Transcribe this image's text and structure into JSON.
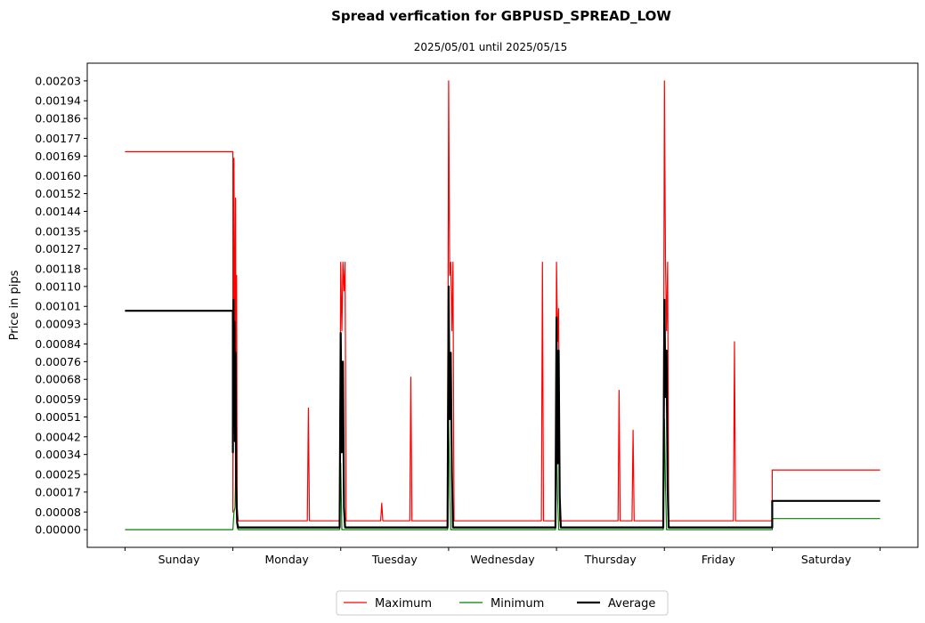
{
  "chart_data": {
    "type": "line",
    "title": "Spread verfication for GBPUSD_SPREAD_LOW",
    "subtitle": "2025/05/01 until 2025/05/15",
    "xlabel": "",
    "ylabel": "Price in pips",
    "ylim": [
      -8e-05,
      0.00211
    ],
    "xlim": [
      -0.35,
      7.35
    ],
    "grid": false,
    "legend_position": "bottom-center",
    "y_ticks": [
      "0.00000",
      "0.00008",
      "0.00017",
      "0.00025",
      "0.00034",
      "0.00042",
      "0.00051",
      "0.00059",
      "0.00068",
      "0.00076",
      "0.00084",
      "0.00093",
      "0.00101",
      "0.00110",
      "0.00118",
      "0.00127",
      "0.00135",
      "0.00144",
      "0.00152",
      "0.00160",
      "0.00169",
      "0.00177",
      "0.00186",
      "0.00194",
      "0.00203"
    ],
    "x_tick_positions": [
      0,
      1,
      2,
      3,
      4,
      5,
      6,
      7
    ],
    "categories": [
      "Sunday",
      "Monday",
      "Tuesday",
      "Wednesday",
      "Thursday",
      "Friday",
      "Saturday"
    ],
    "category_positions": [
      0.5,
      1.5,
      2.5,
      3.5,
      4.5,
      5.5,
      6.5
    ],
    "series": [
      {
        "name": "Maximum",
        "color": "#ff0000",
        "width": 1.2,
        "points": [
          [
            0.0,
            0.00171
          ],
          [
            1.0,
            0.00171
          ],
          [
            1.0,
            8e-05
          ],
          [
            1.01,
            0.00168
          ],
          [
            1.02,
            0.0006
          ],
          [
            1.025,
            0.0015
          ],
          [
            1.03,
            0.0003
          ],
          [
            1.035,
            0.00115
          ],
          [
            1.04,
            0.0001
          ],
          [
            1.05,
            4e-05
          ],
          [
            1.69,
            4e-05
          ],
          [
            1.7,
            0.00055
          ],
          [
            1.71,
            4e-05
          ],
          [
            1.99,
            4e-05
          ],
          [
            2.0,
            0.00121
          ],
          [
            2.01,
            0.0009
          ],
          [
            2.02,
            0.00121
          ],
          [
            2.03,
            0.00108
          ],
          [
            2.04,
            0.00121
          ],
          [
            2.05,
            4e-05
          ],
          [
            2.37,
            4e-05
          ],
          [
            2.38,
            0.00012
          ],
          [
            2.39,
            4e-05
          ],
          [
            2.64,
            4e-05
          ],
          [
            2.65,
            0.00069
          ],
          [
            2.66,
            4e-05
          ],
          [
            2.99,
            4e-05
          ],
          [
            3.0,
            0.00203
          ],
          [
            3.01,
            0.00115
          ],
          [
            3.02,
            0.00121
          ],
          [
            3.03,
            0.0009
          ],
          [
            3.04,
            0.00121
          ],
          [
            3.05,
            4e-05
          ],
          [
            3.86,
            4e-05
          ],
          [
            3.87,
            0.00121
          ],
          [
            3.88,
            4e-05
          ],
          [
            3.99,
            4e-05
          ],
          [
            4.0,
            0.00121
          ],
          [
            4.01,
            0.00085
          ],
          [
            4.02,
            0.001
          ],
          [
            4.03,
            4e-05
          ],
          [
            4.57,
            4e-05
          ],
          [
            4.58,
            0.00063
          ],
          [
            4.59,
            4e-05
          ],
          [
            4.7,
            4e-05
          ],
          [
            4.71,
            0.00045
          ],
          [
            4.72,
            4e-05
          ],
          [
            4.99,
            4e-05
          ],
          [
            5.0,
            0.00203
          ],
          [
            5.01,
            0.00121
          ],
          [
            5.02,
            0.0009
          ],
          [
            5.03,
            0.00121
          ],
          [
            5.04,
            4e-05
          ],
          [
            5.64,
            4e-05
          ],
          [
            5.65,
            0.00085
          ],
          [
            5.66,
            4e-05
          ],
          [
            6.0,
            4e-05
          ],
          [
            6.0,
            0.00027
          ],
          [
            7.0,
            0.00027
          ]
        ]
      },
      {
        "name": "Minimum",
        "color": "#008000",
        "width": 1.2,
        "points": [
          [
            0.0,
            0.0
          ],
          [
            1.0,
            0.0
          ],
          [
            1.01,
            8e-05
          ],
          [
            1.02,
            0.0001
          ],
          [
            1.03,
            0.00035
          ],
          [
            1.04,
            1e-05
          ],
          [
            1.05,
            0.0
          ],
          [
            1.99,
            0.0
          ],
          [
            2.0,
            0.0003
          ],
          [
            2.01,
            0.0
          ],
          [
            2.99,
            0.0
          ],
          [
            3.0,
            0.0005
          ],
          [
            3.01,
            0.0002
          ],
          [
            3.02,
            0.0
          ],
          [
            3.99,
            0.0
          ],
          [
            4.0,
            0.0004
          ],
          [
            4.01,
            0.00015
          ],
          [
            4.02,
            0.0
          ],
          [
            4.99,
            0.0
          ],
          [
            5.0,
            0.0005
          ],
          [
            5.01,
            0.0002
          ],
          [
            5.02,
            0.0
          ],
          [
            6.0,
            0.0
          ],
          [
            6.0,
            5e-05
          ],
          [
            7.0,
            5e-05
          ]
        ]
      },
      {
        "name": "Average",
        "color": "#000000",
        "width": 2.2,
        "points": [
          [
            0.0,
            0.00099
          ],
          [
            1.0,
            0.00099
          ],
          [
            1.0,
            0.00035
          ],
          [
            1.005,
            0.00104
          ],
          [
            1.01,
            0.0005
          ],
          [
            1.015,
            0.00094
          ],
          [
            1.02,
            0.0004
          ],
          [
            1.025,
            0.0008
          ],
          [
            1.03,
            0.0002
          ],
          [
            1.04,
            3e-05
          ],
          [
            1.05,
            1e-05
          ],
          [
            1.99,
            1e-05
          ],
          [
            2.0,
            0.00089
          ],
          [
            2.01,
            0.00035
          ],
          [
            2.02,
            0.00076
          ],
          [
            2.03,
            0.0001
          ],
          [
            2.04,
            1e-05
          ],
          [
            2.99,
            1e-05
          ],
          [
            3.0,
            0.0011
          ],
          [
            3.01,
            0.0005
          ],
          [
            3.02,
            0.0008
          ],
          [
            3.03,
            0.00025
          ],
          [
            3.04,
            1e-05
          ],
          [
            3.99,
            1e-05
          ],
          [
            4.0,
            0.00096
          ],
          [
            4.01,
            0.0003
          ],
          [
            4.02,
            0.00081
          ],
          [
            4.03,
            0.00015
          ],
          [
            4.04,
            1e-05
          ],
          [
            4.99,
            1e-05
          ],
          [
            5.0,
            0.00104
          ],
          [
            5.01,
            0.0006
          ],
          [
            5.02,
            0.00081
          ],
          [
            5.03,
            0.0002
          ],
          [
            5.04,
            1e-05
          ],
          [
            6.0,
            1e-05
          ],
          [
            6.0,
            0.00013
          ],
          [
            7.0,
            0.00013
          ]
        ]
      }
    ]
  }
}
